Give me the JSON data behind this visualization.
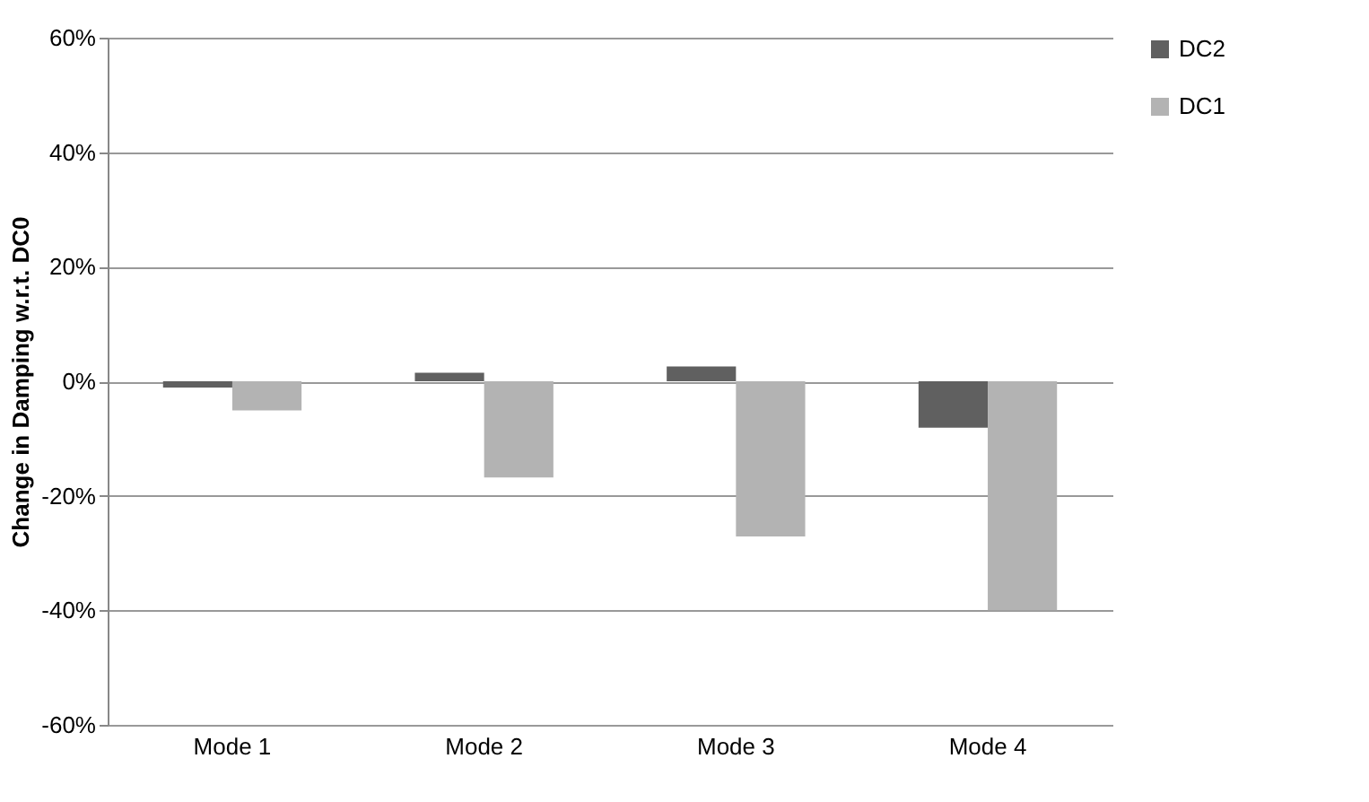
{
  "chart_data": {
    "type": "bar",
    "ylabel": "Change in Damping w.r.t. DC0",
    "categories": [
      "Mode 1",
      "Mode 2",
      "Mode 3",
      "Mode 4"
    ],
    "series": [
      {
        "name": "DC2",
        "color": "#606060",
        "values": [
          -1.1,
          1.5,
          2.6,
          -8.1
        ]
      },
      {
        "name": "DC1",
        "color": "#b3b3b3",
        "values": [
          -5.1,
          -16.8,
          -27.1,
          -40
        ]
      }
    ],
    "ylim": [
      -60,
      60
    ],
    "yticks": [
      {
        "value": -60,
        "label": "-60%"
      },
      {
        "value": -40,
        "label": "-40%"
      },
      {
        "value": -20,
        "label": "-20%"
      },
      {
        "value": 0,
        "label": "0%"
      },
      {
        "value": 20,
        "label": "20%"
      },
      {
        "value": 40,
        "label": "40%"
      },
      {
        "value": 60,
        "label": "60%"
      }
    ],
    "grid": "y",
    "legend": "right"
  }
}
